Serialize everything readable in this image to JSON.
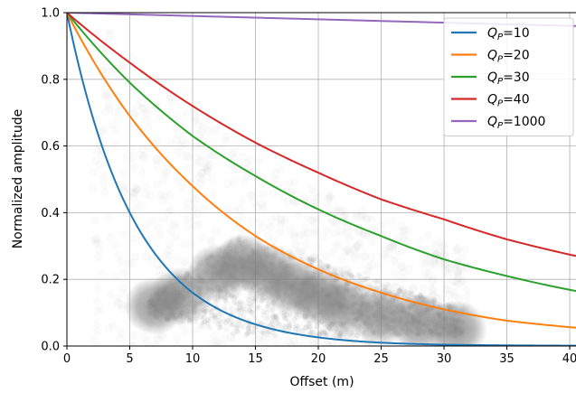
{
  "chart_data": {
    "type": "line",
    "xlabel": "Offset (m)",
    "ylabel": "Normalized amplitude",
    "xlim": [
      0,
      40.5
    ],
    "ylim": [
      0.0,
      1.0
    ],
    "x_ticks": [
      "0",
      "5",
      "10",
      "15",
      "20",
      "25",
      "30",
      "35",
      "40"
    ],
    "y_ticks": [
      "0.0",
      "0.2",
      "0.4",
      "0.6",
      "0.8",
      "1.0"
    ],
    "grid": true,
    "legend_position": "top-right",
    "x": [
      0,
      5,
      10,
      15,
      20,
      25,
      30,
      35,
      40.5
    ],
    "series": [
      {
        "name": "Q_P=10",
        "label_q": "Q",
        "label_sub": "P",
        "label_val": "=10",
        "color": "#1f77b4",
        "values": [
          1.0,
          0.4,
          0.16,
          0.065,
          0.026,
          0.01,
          0.004,
          0.002,
          0.001
        ]
      },
      {
        "name": "Q_P=20",
        "label_q": "Q",
        "label_sub": "P",
        "label_val": "=20",
        "color": "#ff7f0e",
        "values": [
          1.0,
          0.69,
          0.48,
          0.33,
          0.23,
          0.16,
          0.11,
          0.076,
          0.055
        ]
      },
      {
        "name": "Q_P=30",
        "label_q": "Q",
        "label_sub": "P",
        "label_val": "=30",
        "color": "#2ca02c",
        "values": [
          1.0,
          0.79,
          0.63,
          0.51,
          0.41,
          0.33,
          0.26,
          0.21,
          0.165
        ]
      },
      {
        "name": "Q_P=40",
        "label_q": "Q",
        "label_sub": "P",
        "label_val": "=40",
        "color": "#d62728",
        "values": [
          1.0,
          0.85,
          0.72,
          0.61,
          0.52,
          0.44,
          0.38,
          0.32,
          0.27
        ]
      },
      {
        "name": "Q_P=1000",
        "label_q": "Q",
        "label_sub": "P",
        "label_val": "=1000",
        "color": "#9467bd",
        "values": [
          1.0,
          0.995,
          0.99,
          0.985,
          0.98,
          0.975,
          0.97,
          0.965,
          0.96
        ]
      }
    ],
    "scatter_cloud": {
      "color": "#808080",
      "description_points": [
        {
          "x": 7,
          "y": 0.12
        },
        {
          "x": 9,
          "y": 0.15
        },
        {
          "x": 12,
          "y": 0.22
        },
        {
          "x": 14,
          "y": 0.25
        },
        {
          "x": 16,
          "y": 0.22
        },
        {
          "x": 18,
          "y": 0.18
        },
        {
          "x": 20,
          "y": 0.15
        },
        {
          "x": 22,
          "y": 0.12
        },
        {
          "x": 25,
          "y": 0.09
        },
        {
          "x": 28,
          "y": 0.07
        },
        {
          "x": 31,
          "y": 0.05
        }
      ]
    }
  }
}
